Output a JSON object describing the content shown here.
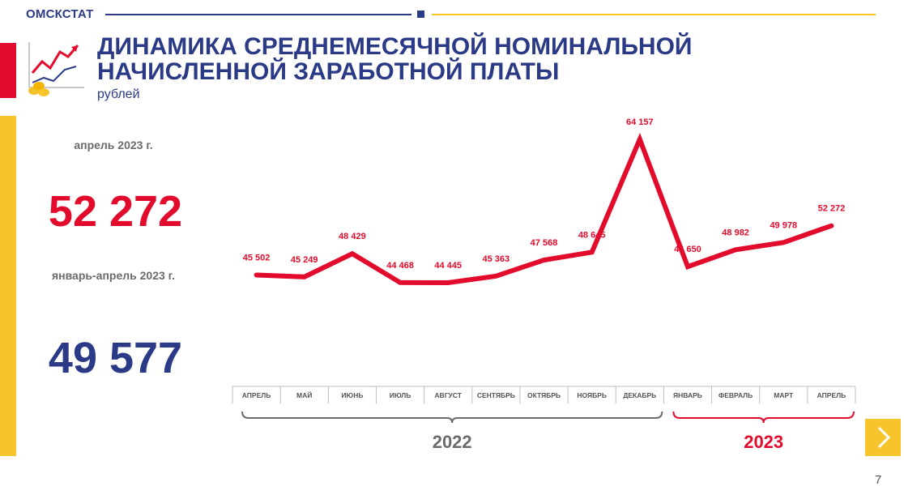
{
  "header": {
    "brand": "ОМСКСТАТ",
    "title": "ДИНАМИКА СРЕДНЕМЕСЯЧНОЙ НОМИНАЛЬНОЙ НАЧИСЛЕННОЙ ЗАРАБОТНОЙ ПЛАТЫ",
    "subtitle": "рублей"
  },
  "colors": {
    "navy": "#2b3a86",
    "red": "#e30b2c",
    "yellow": "#f7c52b",
    "gray": "#6b6b6b"
  },
  "kpis": [
    {
      "label": "апрель 2023 г.",
      "value": "52 272"
    },
    {
      "label": "январь-апрель 2023 г.",
      "value": "49 577"
    }
  ],
  "chart_data": {
    "type": "line",
    "categories": [
      "АПРЕЛЬ",
      "МАЙ",
      "ИЮНЬ",
      "ИЮЛЬ",
      "АВГУСТ",
      "СЕНТЯБРЬ",
      "ОКТЯБРЬ",
      "НОЯБРЬ",
      "ДЕКАБРЬ",
      "ЯНВАРЬ",
      "ФЕВРАЛЬ",
      "МАРТ",
      "АПРЕЛЬ"
    ],
    "values": [
      45502,
      45249,
      48429,
      44468,
      44445,
      45363,
      47568,
      48645,
      64157,
      46650,
      48982,
      49978,
      52272
    ],
    "data_labels": [
      "45 502",
      "45 249",
      "48 429",
      "44 468",
      "44 445",
      "45 363",
      "47 568",
      "48 645",
      "64 157",
      "46 650",
      "48 982",
      "49 978",
      "52 272"
    ],
    "year_groups": [
      {
        "label": "2022",
        "start": 0,
        "end": 8
      },
      {
        "label": "2023",
        "start": 9,
        "end": 12
      }
    ],
    "line_color": "#e30b2c",
    "grid": false
  },
  "page": {
    "number": "7"
  },
  "nav": {
    "next_icon": "chevron-right-icon"
  }
}
